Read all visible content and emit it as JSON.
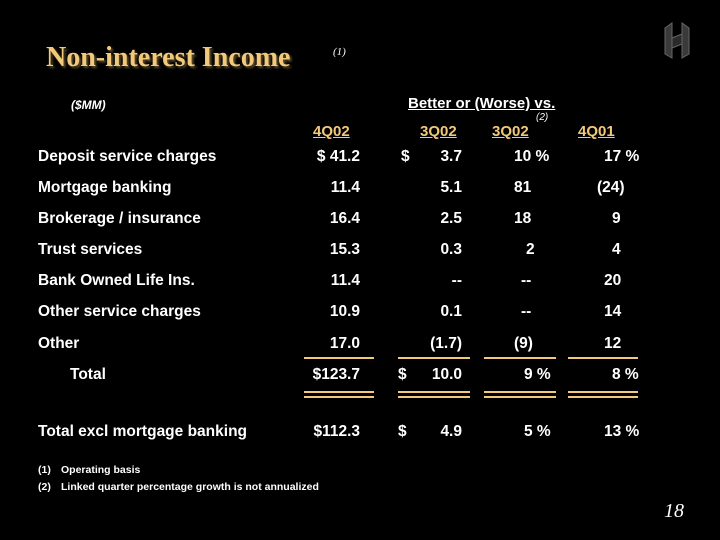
{
  "title": "Non-interest Income",
  "title_note": "(1)",
  "units": "($MM)",
  "comparison_label": "Better or (Worse) vs.",
  "columns": {
    "current": "4Q02",
    "c1": "3Q02",
    "c2": "3Q02",
    "c2_note": "(2)",
    "c3": "4Q01"
  },
  "rows": [
    {
      "label": "Deposit service charges",
      "current": "$  41.2",
      "c1_sign": "$",
      "c1": "3.7",
      "c2": "10 %",
      "c3": "17 %"
    },
    {
      "label": "Mortgage banking",
      "current": "11.4",
      "c1_sign": "",
      "c1": "5.1",
      "c2": "81",
      "c3": "(24)"
    },
    {
      "label": "Brokerage / insurance",
      "current": "16.4",
      "c1_sign": "",
      "c1": "2.5",
      "c2": "18",
      "c3": "9"
    },
    {
      "label": "Trust services",
      "current": "15.3",
      "c1_sign": "",
      "c1": "0.3",
      "c2": "2",
      "c3": "4"
    },
    {
      "label": "Bank Owned Life Ins.",
      "current": "11.4",
      "c1_sign": "",
      "c1": "--",
      "c2": "--",
      "c3": "20"
    },
    {
      "label": "Other service charges",
      "current": "10.9",
      "c1_sign": "",
      "c1": "0.1",
      "c2": "--",
      "c3": "14"
    },
    {
      "label": "Other",
      "current": "17.0",
      "c1_sign": "",
      "c1": "(1.7)",
      "c2": "(9)",
      "c3": "12"
    },
    {
      "label": "Total",
      "current": "$123.7",
      "c1_sign": "$",
      "c1": "10.0",
      "c2": "9 %",
      "c3": "8 %"
    },
    {
      "label": "Total excl mortgage banking",
      "current": "$112.3",
      "c1_sign": "$",
      "c1": "4.9",
      "c2": "5 %",
      "c3": "13 %"
    }
  ],
  "footnotes": [
    {
      "num": "(1)",
      "text": "Operating basis"
    },
    {
      "num": "(2)",
      "text": "Linked quarter percentage growth is not annualized"
    }
  ],
  "page_number": "18",
  "colors": {
    "accent": "#f2c97a",
    "background": "#000000",
    "text": "#ffffff"
  }
}
